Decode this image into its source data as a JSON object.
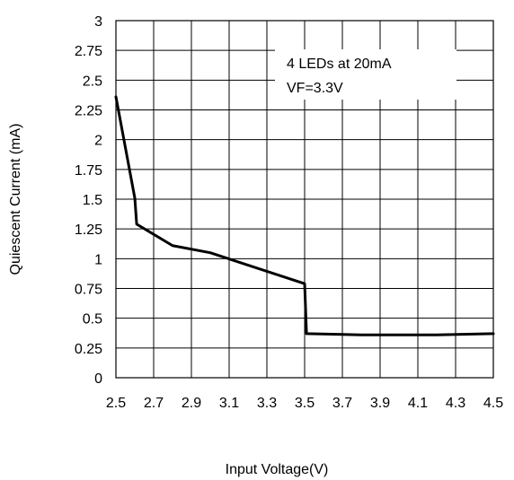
{
  "chart_data": {
    "type": "line",
    "title": "",
    "xlabel": "Input Voltage(V)",
    "ylabel": "Quiescent Current (mA)",
    "xlim": [
      2.5,
      4.5
    ],
    "ylim": [
      0,
      3
    ],
    "grid": true,
    "x_ticks": [
      "2.5",
      "2.7",
      "2.9",
      "3.1",
      "3.3",
      "3.5",
      "3.7",
      "3.9",
      "4.1",
      "4.3",
      "4.5"
    ],
    "y_ticks": [
      "0",
      "0.25",
      "0.5",
      "0.75",
      "1",
      "1.25",
      "1.5",
      "1.75",
      "2",
      "2.25",
      "2.5",
      "2.75",
      "3"
    ],
    "annotations": [
      "4 LEDs at 20mA",
      "VF=3.3V"
    ],
    "series": [
      {
        "color": "#000000",
        "x": [
          2.5,
          2.6,
          2.61,
          2.8,
          3.0,
          3.5,
          3.51,
          3.8,
          4.2,
          4.5
        ],
        "y": [
          2.36,
          1.51,
          1.29,
          1.11,
          1.05,
          0.79,
          0.37,
          0.36,
          0.36,
          0.37
        ]
      }
    ]
  }
}
